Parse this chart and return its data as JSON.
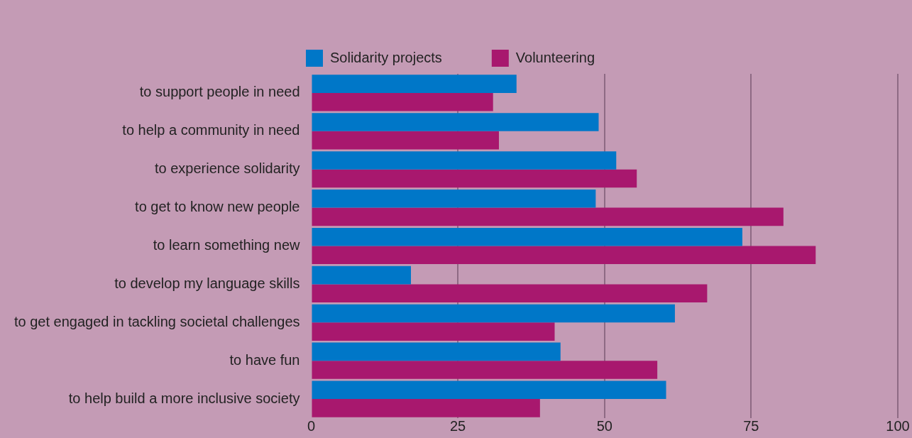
{
  "chart_data": {
    "type": "bar",
    "orientation": "horizontal",
    "categories": [
      "to support people in need",
      "to help a community in need",
      "to experience solidarity",
      "to get to know new people",
      "to learn something new",
      "to develop my language skills",
      "to get engaged in tackling societal challenges",
      "to have fun",
      "to help build a more inclusive society"
    ],
    "series": [
      {
        "name": "Solidarity projects",
        "color": "#0077c8",
        "values": [
          35,
          49,
          52,
          48.5,
          73.5,
          17,
          62,
          42.5,
          60.5
        ]
      },
      {
        "name": "Volunteering",
        "color": "#a8186e",
        "values": [
          31,
          32,
          55.5,
          80.5,
          86,
          67.5,
          41.5,
          59,
          39
        ]
      }
    ],
    "xlim": [
      0,
      100
    ],
    "xticks": [
      0,
      25,
      50,
      75,
      100
    ],
    "grid": "x",
    "legend": "top"
  }
}
